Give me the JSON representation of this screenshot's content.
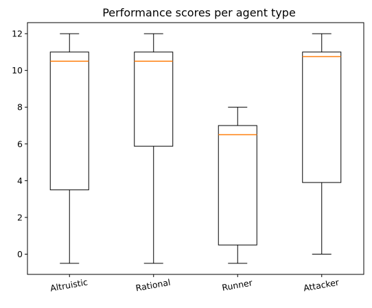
{
  "chart_data": {
    "type": "box",
    "title": "Performance scores per agent type",
    "xlabel": "",
    "ylabel": "",
    "categories": [
      "Altruistic",
      "Rational",
      "Runner",
      "Attacker"
    ],
    "boxes": [
      {
        "whisker_low": -0.5,
        "q1": 3.5,
        "median": 10.5,
        "q3": 11.0,
        "whisker_high": 12.0
      },
      {
        "whisker_low": -0.5,
        "q1": 5.875,
        "median": 10.5,
        "q3": 11.0,
        "whisker_high": 12.0
      },
      {
        "whisker_low": -0.5,
        "q1": 0.5,
        "median": 6.5,
        "q3": 7.0,
        "whisker_high": 8.0
      },
      {
        "whisker_low": 0.0,
        "q1": 3.9,
        "median": 10.75,
        "q3": 11.0,
        "whisker_high": 12.0
      }
    ],
    "yticks": [
      0,
      2,
      4,
      6,
      8,
      10,
      12
    ],
    "ylim": [
      -1.1,
      12.6
    ],
    "grid": false,
    "colors": {
      "box": "#000000",
      "median": "#ff7f0e"
    }
  }
}
